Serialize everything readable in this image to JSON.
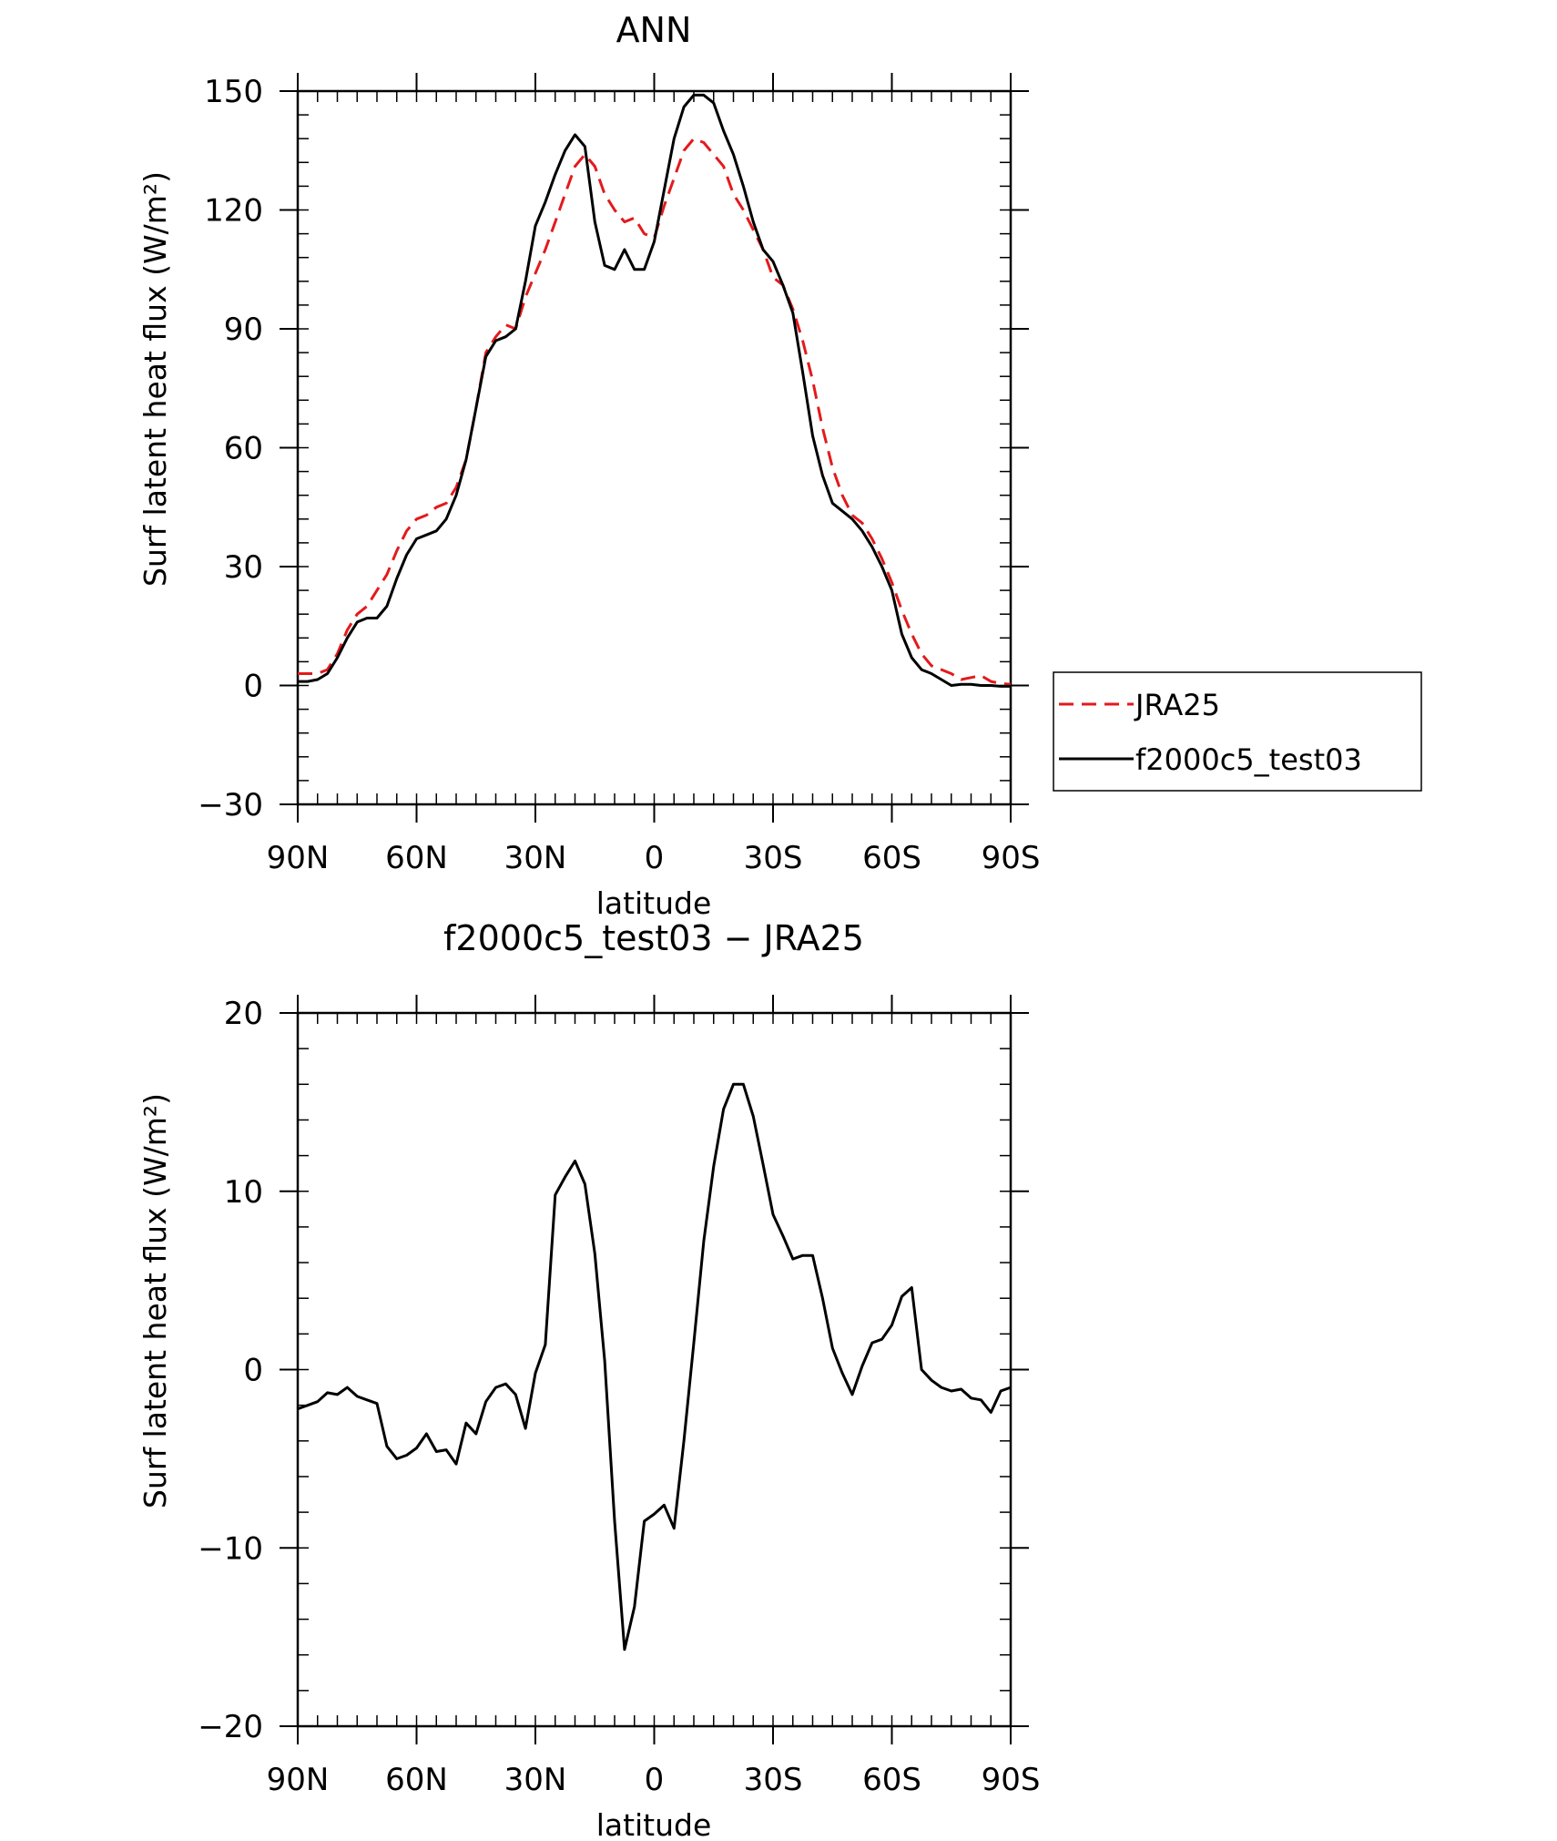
{
  "chart_data": [
    {
      "type": "line",
      "title": "ANN",
      "xlabel": "latitude",
      "ylabel": "Surf latent heat flux (W/m²)",
      "xlim": [
        90,
        -90
      ],
      "ylim": [
        -30,
        150
      ],
      "xticks": [
        90,
        60,
        30,
        0,
        -30,
        -60,
        -90
      ],
      "xtick_labels": [
        "90N",
        "60N",
        "30N",
        "0",
        "30S",
        "60S",
        "90S"
      ],
      "yticks": [
        -30,
        0,
        30,
        60,
        90,
        120,
        150
      ],
      "ytick_labels": [
        "−30",
        "0",
        "30",
        "60",
        "90",
        "120",
        "150"
      ],
      "legend": {
        "placement": "right",
        "entries": [
          "JRA25",
          "f2000c5_test03"
        ]
      },
      "series": [
        {
          "name": "JRA25",
          "color": "#e31a1c",
          "dash": "dashed",
          "x": [
            90,
            87.5,
            85,
            82.5,
            80,
            77.5,
            75,
            72.5,
            70,
            67.5,
            65,
            62.5,
            60,
            57.5,
            55,
            52.5,
            50,
            47.5,
            45,
            42.5,
            40,
            37.5,
            35,
            32.5,
            30,
            27.5,
            25,
            22.5,
            20,
            17.5,
            15,
            12.5,
            10,
            7.5,
            5,
            2.5,
            0,
            -2.5,
            -5,
            -7.5,
            -10,
            -12.5,
            -15,
            -17.5,
            -20,
            -22.5,
            -25,
            -27.5,
            -30,
            -32.5,
            -35,
            -37.5,
            -40,
            -42.5,
            -45,
            -47.5,
            -50,
            -52.5,
            -55,
            -57.5,
            -60,
            -62.5,
            -65,
            -67.5,
            -70,
            -72.5,
            -75,
            -77.5,
            -80,
            -82.5,
            -85,
            -87.5,
            -90
          ],
          "y": [
            3,
            3,
            3,
            4,
            8,
            14,
            18,
            20,
            24,
            28,
            34,
            39,
            42,
            43,
            45,
            46,
            50,
            57,
            70,
            84,
            88,
            91,
            90,
            98,
            104,
            110,
            117,
            124,
            131,
            134,
            131,
            124,
            120,
            117,
            118,
            114,
            113,
            121,
            128,
            135,
            138,
            137,
            134,
            131,
            124,
            120,
            115,
            110,
            103,
            101,
            95,
            87,
            77,
            65,
            55,
            48,
            43,
            41,
            37,
            32,
            26,
            19,
            13,
            8,
            5,
            4,
            3,
            1.5,
            2,
            2.5,
            1,
            0.5,
            0.3
          ]
        },
        {
          "name": "f2000c5_test03",
          "color": "#000000",
          "dash": "solid",
          "x": [
            90,
            87.5,
            85,
            82.5,
            80,
            77.5,
            75,
            72.5,
            70,
            67.5,
            65,
            62.5,
            60,
            57.5,
            55,
            52.5,
            50,
            47.5,
            45,
            42.5,
            40,
            37.5,
            35,
            32.5,
            30,
            27.5,
            25,
            22.5,
            20,
            17.5,
            15,
            12.5,
            10,
            7.5,
            5,
            2.5,
            0,
            -2.5,
            -5,
            -7.5,
            -10,
            -12.5,
            -15,
            -17.5,
            -20,
            -22.5,
            -25,
            -27.5,
            -30,
            -32.5,
            -35,
            -37.5,
            -40,
            -42.5,
            -45,
            -47.5,
            -50,
            -52.5,
            -55,
            -57.5,
            -60,
            -62.5,
            -65,
            -67.5,
            -70,
            -72.5,
            -75,
            -77.5,
            -80,
            -82.5,
            -85,
            -87.5,
            -90
          ],
          "y": [
            1,
            1,
            1.5,
            3,
            7,
            12,
            16,
            17,
            17,
            20,
            27,
            33,
            37,
            38,
            39,
            42,
            48,
            57,
            70,
            83,
            87,
            88,
            90,
            102,
            116,
            122,
            129,
            135,
            139,
            136,
            117,
            106,
            105,
            110,
            105,
            105,
            112,
            125,
            138,
            146,
            149,
            149,
            147,
            140,
            134,
            126,
            117,
            110,
            107,
            101,
            94,
            79,
            63,
            53,
            46,
            44,
            42,
            39,
            35,
            30,
            24,
            13,
            7,
            4,
            3,
            1.5,
            0,
            0.3,
            0.3,
            0,
            0,
            -0.2,
            -0.2
          ]
        }
      ]
    },
    {
      "type": "line",
      "title": "f2000c5_test03 − JRA25",
      "xlabel": "latitude",
      "ylabel": "Surf latent heat flux (W/m²)",
      "xlim": [
        90,
        -90
      ],
      "ylim": [
        -20,
        20
      ],
      "xticks": [
        90,
        60,
        30,
        0,
        -30,
        -60,
        -90
      ],
      "xtick_labels": [
        "90N",
        "60N",
        "30N",
        "0",
        "30S",
        "60S",
        "90S"
      ],
      "yticks": [
        -20,
        -10,
        0,
        10,
        20
      ],
      "ytick_labels": [
        "−20",
        "−10",
        "0",
        "10",
        "20"
      ],
      "series": [
        {
          "color": "#000000",
          "dash": "solid",
          "x": [
            90,
            87.5,
            85,
            82.5,
            80,
            77.5,
            75,
            72.5,
            70,
            67.5,
            65,
            62.5,
            60,
            57.5,
            55,
            52.5,
            50,
            47.5,
            45,
            42.5,
            40,
            37.5,
            35,
            32.5,
            30,
            27.5,
            25,
            22.5,
            20,
            17.5,
            15,
            12.5,
            10,
            7.5,
            5,
            2.5,
            0,
            -2.5,
            -5,
            -7.5,
            -10,
            -12.5,
            -15,
            -17.5,
            -20,
            -22.5,
            -25,
            -27.5,
            -30,
            -32.5,
            -35,
            -37.5,
            -40,
            -42.5,
            -45,
            -47.5,
            -50,
            -52.5,
            -55,
            -57.5,
            -60,
            -62.5,
            -65,
            -67.5,
            -70,
            -72.5,
            -75,
            -77.5,
            -80,
            -82.5,
            -85,
            -87.5,
            -90
          ],
          "y": [
            -2.2,
            -2,
            -1.8,
            -1.3,
            -1.4,
            -1,
            -1.5,
            -1.7,
            -1.9,
            -4.3,
            -5,
            -4.8,
            -4.4,
            -3.6,
            -4.6,
            -4.5,
            -5.3,
            -3,
            -3.6,
            -1.8,
            -1,
            -0.8,
            -1.4,
            -3.3,
            -0.2,
            1.4,
            9.8,
            10.8,
            11.7,
            10.4,
            6.5,
            0.5,
            -8.5,
            -15.7,
            -13.3,
            -8.5,
            -8.1,
            -7.6,
            -8.9,
            -4,
            1.5,
            7.2,
            11.4,
            14.6,
            16,
            16,
            14.2,
            11.5,
            8.7,
            7.5,
            6.2,
            6.4,
            6.4,
            4,
            1.2,
            -0.2,
            -1.4,
            0.2,
            1.5,
            1.7,
            2.5,
            4.1,
            4.6,
            0,
            -0.6,
            -1,
            -1.2,
            -1.1,
            -1.6,
            -1.7,
            -2.4,
            -1.2,
            -1
          ]
        }
      ]
    }
  ]
}
